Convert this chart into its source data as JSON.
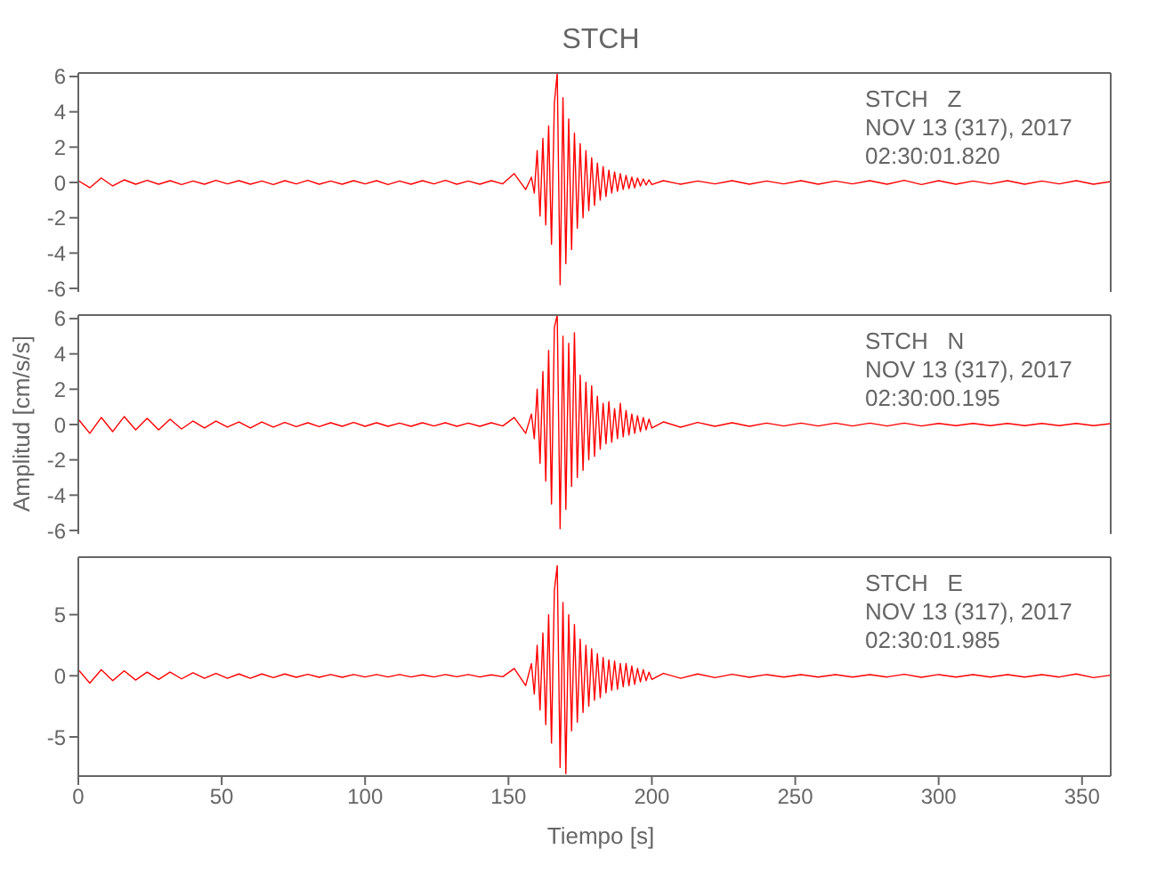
{
  "chart_data": [
    {
      "type": "line",
      "title": "STCH",
      "annotations": [
        "STCH   Z",
        "NOV 13 (317), 2017",
        "02:30:01.820"
      ],
      "color": "#ff0000",
      "tick_labels": "y",
      "xlim": [
        0,
        360
      ],
      "xticks": [
        0,
        50,
        100,
        150,
        200,
        250,
        300,
        350
      ],
      "ylim": [
        -6.2,
        6.2
      ],
      "yticks": [
        -6,
        -4,
        -2,
        0,
        2,
        4,
        6
      ],
      "x": [
        0,
        4,
        8,
        12,
        16,
        20,
        24,
        28,
        32,
        36,
        40,
        44,
        48,
        52,
        56,
        60,
        64,
        68,
        72,
        76,
        80,
        84,
        88,
        92,
        96,
        100,
        104,
        108,
        112,
        116,
        120,
        124,
        128,
        132,
        136,
        140,
        144,
        148,
        152,
        156,
        158,
        159,
        160,
        161,
        162,
        163,
        164,
        165,
        166,
        167,
        168,
        169,
        170,
        171,
        172,
        173,
        174,
        175,
        176,
        177,
        178,
        179,
        180,
        181,
        182,
        183,
        184,
        185,
        186,
        187,
        188,
        189,
        190,
        191,
        192,
        193,
        194,
        195,
        196,
        197,
        198,
        199,
        200,
        204,
        210,
        216,
        222,
        228,
        234,
        240,
        246,
        252,
        258,
        264,
        270,
        276,
        282,
        288,
        294,
        300,
        306,
        312,
        318,
        324,
        330,
        336,
        342,
        348,
        354,
        360
      ],
      "values": [
        0.1,
        -0.3,
        0.25,
        -0.2,
        0.15,
        -0.1,
        0.12,
        -0.1,
        0.1,
        -0.12,
        0.08,
        -0.1,
        0.12,
        -0.08,
        0.1,
        -0.1,
        0.08,
        -0.12,
        0.1,
        -0.08,
        0.12,
        -0.1,
        0.08,
        -0.1,
        0.1,
        -0.08,
        0.1,
        -0.12,
        0.08,
        -0.1,
        0.1,
        -0.08,
        0.12,
        -0.1,
        0.08,
        -0.1,
        0.1,
        -0.08,
        0.5,
        -0.4,
        0.3,
        -0.6,
        1.8,
        -1.9,
        2.5,
        -2.4,
        3.2,
        -3.5,
        4.5,
        6.2,
        -5.8,
        4.8,
        -4.6,
        3.6,
        -3.8,
        2.8,
        -2.6,
        2.2,
        -2.0,
        1.8,
        -1.6,
        1.4,
        -1.3,
        1.1,
        -1.0,
        0.9,
        -0.8,
        0.7,
        -0.6,
        0.6,
        -0.5,
        0.5,
        -0.4,
        0.4,
        -0.35,
        0.3,
        -0.3,
        0.25,
        -0.2,
        0.2,
        -0.15,
        0.15,
        -0.12,
        0.1,
        -0.1,
        0.08,
        -0.08,
        0.1,
        -0.1,
        0.08,
        -0.08,
        0.1,
        -0.1,
        0.08,
        -0.08,
        0.1,
        -0.1,
        0.12,
        -0.12,
        0.1,
        -0.1,
        0.08,
        -0.08,
        0.1,
        -0.1,
        0.08,
        -0.08,
        0.1,
        -0.1,
        0.05
      ]
    },
    {
      "type": "line",
      "ylabel": "Amplitud [cm/s/s]",
      "annotations": [
        "STCH   N",
        "NOV 13 (317), 2017",
        "02:30:00.195"
      ],
      "color": "#ff0000",
      "tick_labels": "y",
      "xlim": [
        0,
        360
      ],
      "xticks": [
        0,
        50,
        100,
        150,
        200,
        250,
        300,
        350
      ],
      "ylim": [
        -6.2,
        6.2
      ],
      "yticks": [
        -6,
        -4,
        -2,
        0,
        2,
        4,
        6
      ],
      "x": [
        0,
        4,
        8,
        12,
        16,
        20,
        24,
        28,
        32,
        36,
        40,
        44,
        48,
        52,
        56,
        60,
        64,
        68,
        72,
        76,
        80,
        84,
        88,
        92,
        96,
        100,
        104,
        108,
        112,
        116,
        120,
        124,
        128,
        132,
        136,
        140,
        144,
        148,
        152,
        156,
        158,
        159,
        160,
        161,
        162,
        163,
        164,
        165,
        166,
        167,
        168,
        169,
        170,
        171,
        172,
        173,
        174,
        175,
        176,
        177,
        178,
        179,
        180,
        181,
        182,
        183,
        184,
        185,
        186,
        187,
        188,
        189,
        190,
        191,
        192,
        193,
        194,
        195,
        196,
        197,
        198,
        199,
        200,
        204,
        210,
        216,
        222,
        228,
        234,
        240,
        246,
        252,
        258,
        264,
        270,
        276,
        282,
        288,
        294,
        300,
        306,
        312,
        318,
        324,
        330,
        336,
        342,
        348,
        354,
        360
      ],
      "values": [
        0.3,
        -0.5,
        0.4,
        -0.4,
        0.45,
        -0.3,
        0.35,
        -0.3,
        0.3,
        -0.25,
        0.2,
        -0.2,
        0.2,
        -0.15,
        0.15,
        -0.2,
        0.15,
        -0.15,
        0.12,
        -0.12,
        0.1,
        -0.12,
        0.1,
        -0.1,
        0.12,
        -0.1,
        0.1,
        -0.1,
        0.08,
        -0.1,
        0.1,
        -0.08,
        0.1,
        -0.1,
        0.08,
        -0.1,
        0.1,
        -0.08,
        0.4,
        -0.5,
        0.6,
        -0.8,
        2.0,
        -2.2,
        3.0,
        -3.2,
        4.2,
        -4.5,
        5.5,
        6.2,
        -5.9,
        5.0,
        -4.8,
        4.6,
        -3.5,
        5.2,
        -3.0,
        2.8,
        -2.6,
        2.4,
        -2.0,
        2.2,
        -1.8,
        1.6,
        -1.4,
        1.2,
        -1.1,
        1.3,
        -1.0,
        0.9,
        -0.8,
        1.2,
        -0.7,
        0.8,
        -0.6,
        0.6,
        -0.5,
        0.5,
        -0.4,
        0.4,
        -0.3,
        0.3,
        -0.2,
        0.15,
        -0.15,
        0.12,
        -0.1,
        0.1,
        -0.1,
        0.08,
        -0.08,
        0.08,
        -0.08,
        0.08,
        -0.08,
        0.08,
        -0.08,
        0.08,
        -0.08,
        0.06,
        -0.06,
        0.06,
        -0.06,
        0.06,
        -0.06,
        0.06,
        -0.06,
        0.06,
        -0.06,
        0.05
      ]
    },
    {
      "type": "line",
      "xlabel": "Tiempo [s]",
      "annotations": [
        "STCH   E",
        "NOV 13 (317), 2017",
        "02:30:01.985"
      ],
      "color": "#ff0000",
      "xlim": [
        0,
        360
      ],
      "xticks": [
        0,
        50,
        100,
        150,
        200,
        250,
        300,
        350
      ],
      "ylim": [
        -8.2,
        9.7
      ],
      "yticks": [
        -5,
        0,
        5
      ],
      "x": [
        0,
        4,
        8,
        12,
        16,
        20,
        24,
        28,
        32,
        36,
        40,
        44,
        48,
        52,
        56,
        60,
        64,
        68,
        72,
        76,
        80,
        84,
        88,
        92,
        96,
        100,
        104,
        108,
        112,
        116,
        120,
        124,
        128,
        132,
        136,
        140,
        144,
        148,
        152,
        156,
        158,
        159,
        160,
        161,
        162,
        163,
        164,
        165,
        166,
        167,
        168,
        169,
        170,
        171,
        172,
        173,
        174,
        175,
        176,
        177,
        178,
        179,
        180,
        181,
        182,
        183,
        184,
        185,
        186,
        187,
        188,
        189,
        190,
        191,
        192,
        193,
        194,
        195,
        196,
        197,
        198,
        199,
        200,
        204,
        210,
        216,
        222,
        228,
        234,
        240,
        246,
        252,
        258,
        264,
        270,
        276,
        282,
        288,
        294,
        300,
        306,
        312,
        318,
        324,
        330,
        336,
        342,
        348,
        354,
        360
      ],
      "values": [
        0.5,
        -0.6,
        0.5,
        -0.4,
        0.4,
        -0.35,
        0.3,
        -0.3,
        0.3,
        -0.25,
        0.25,
        -0.2,
        0.2,
        -0.2,
        0.15,
        -0.2,
        0.15,
        -0.15,
        0.15,
        -0.12,
        0.12,
        -0.12,
        0.1,
        -0.12,
        0.1,
        -0.1,
        0.1,
        -0.1,
        0.1,
        -0.1,
        0.08,
        -0.1,
        0.1,
        -0.08,
        0.1,
        -0.1,
        0.08,
        -0.08,
        0.6,
        -0.8,
        1.0,
        -1.5,
        2.5,
        -2.8,
        3.5,
        -4.0,
        5.0,
        -5.5,
        7.0,
        9.0,
        -7.5,
        6.0,
        -8.0,
        5.0,
        -4.5,
        4.2,
        -3.8,
        3.0,
        -3.0,
        2.5,
        -2.5,
        2.2,
        -2.0,
        1.8,
        -1.8,
        1.5,
        -1.4,
        1.3,
        -1.2,
        1.2,
        -1.1,
        1.0,
        -0.9,
        1.0,
        -0.8,
        0.8,
        -0.7,
        0.6,
        -0.5,
        0.5,
        -0.4,
        0.3,
        -0.3,
        0.2,
        -0.2,
        0.15,
        -0.15,
        0.12,
        -0.12,
        0.1,
        -0.1,
        0.1,
        -0.1,
        0.1,
        -0.1,
        0.1,
        -0.1,
        0.12,
        -0.12,
        0.1,
        -0.1,
        0.1,
        -0.1,
        0.1,
        -0.1,
        0.1,
        -0.1,
        0.15,
        -0.15,
        0.05
      ]
    }
  ]
}
